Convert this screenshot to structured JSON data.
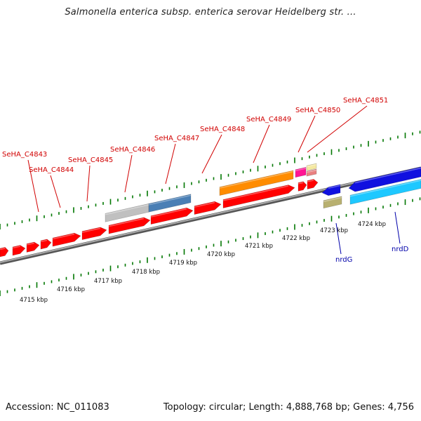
{
  "header": {
    "title": "Salmonella enterica subsp. enterica serovar Heidelberg str. ..."
  },
  "footer": {
    "accession": "Accession: NC_011083",
    "summary": "Topology: circular; Length: 4,888,768 bp; Genes: 4,756"
  },
  "gene_labels": [
    "SeHA_C4843",
    "SeHA_C4844",
    "SeHA_C4845",
    "SeHA_C4846",
    "SeHA_C4847",
    "SeHA_C4848",
    "SeHA_C4849",
    "SeHA_C4850",
    "SeHA_C4851"
  ],
  "named_genes": [
    "nrdG",
    "nrdD"
  ],
  "scale_labels": [
    "4715 kbp",
    "4716 kbp",
    "4717 kbp",
    "4718 kbp",
    "4719 kbp",
    "4720 kbp",
    "4721 kbp",
    "4722 kbp",
    "4723 kbp",
    "4724 kbp"
  ],
  "colors": {
    "cds_red": "#ff0000",
    "orange": "#ff8c00",
    "blue": "#1010e0",
    "cyan": "#1ec8ff",
    "gray": "#c0c0c0",
    "steel": "#4a7fb5",
    "magenta": "#ff1493",
    "pink": "#e88080",
    "khaki": "#b8b070",
    "backbone": "#888888",
    "ticks": "#007700",
    "label_red": "#d10000",
    "label_blue": "#0000aa"
  }
}
